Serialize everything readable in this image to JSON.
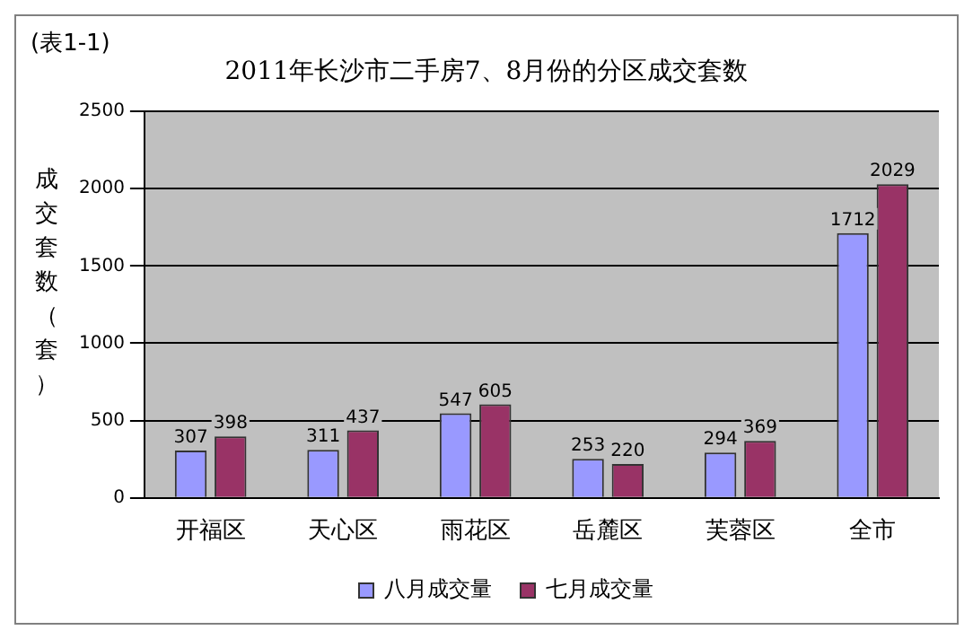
{
  "chart_data": {
    "type": "bar",
    "title": "2011年长沙市二手房7、8月份的分区成交套数",
    "ylabel": "成交套数（套）",
    "annotations": [
      "(表1-1)"
    ],
    "categories": [
      "开福区",
      "天心区",
      "雨花区",
      "岳麓区",
      "芙蓉区",
      "全市"
    ],
    "series": [
      {
        "name": "八月成交量",
        "color": "#9999ff",
        "values": [
          307,
          311,
          547,
          253,
          294,
          1712
        ]
      },
      {
        "name": "七月成交量",
        "color": "#993366",
        "values": [
          398,
          437,
          605,
          220,
          369,
          2029
        ]
      }
    ],
    "ylim": [
      0,
      2500
    ],
    "yticks": [
      0,
      500,
      1000,
      1500,
      2000,
      2500
    ],
    "grid": "y",
    "legend": "bottom",
    "data_labels": true
  }
}
